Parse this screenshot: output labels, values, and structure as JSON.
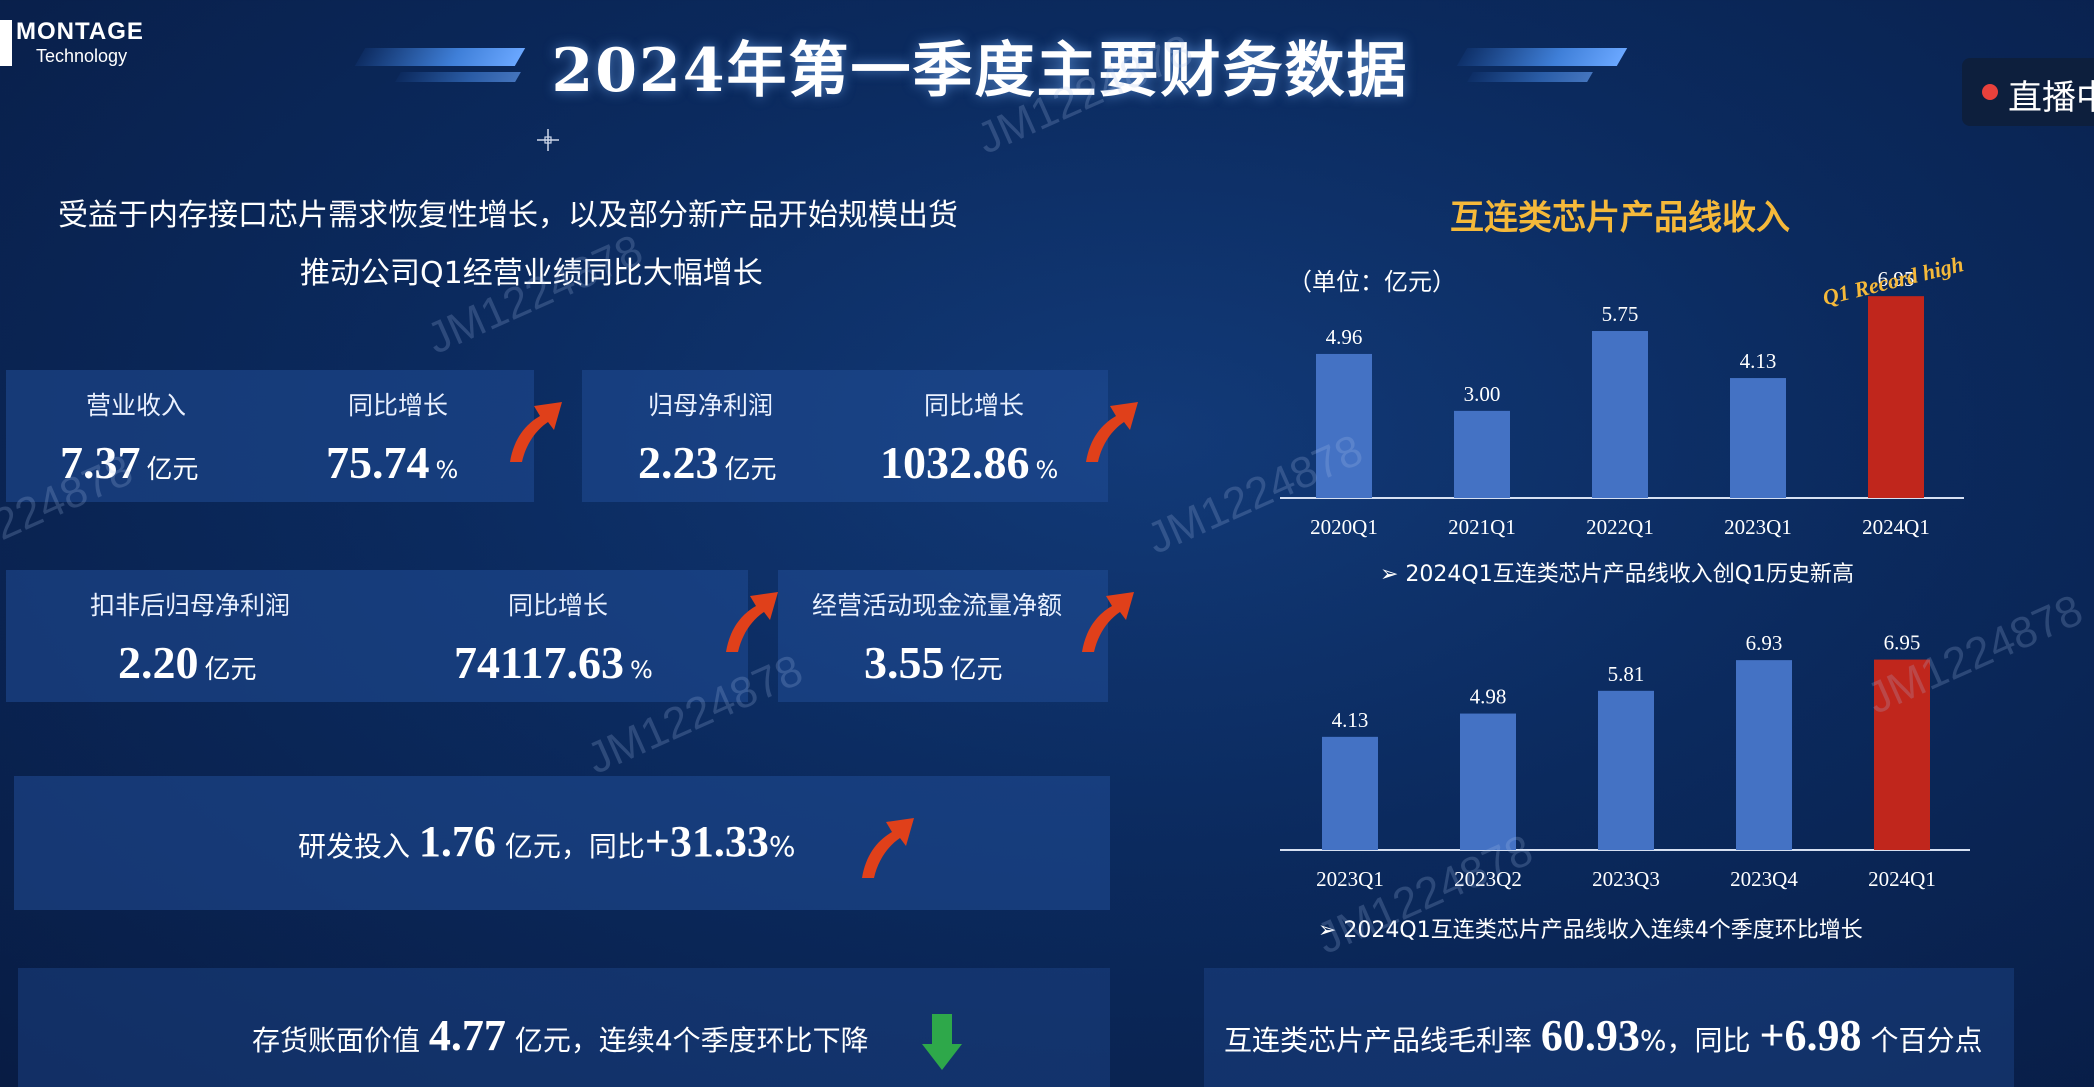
{
  "header": {
    "logo_main": "MONTAGE",
    "logo_sub": "Technology",
    "title": "2024年第一季度主要财务数据",
    "live_label": "直播中"
  },
  "intro": {
    "line1": "受益于内存接口芯片需求恢复性增长，以及部分新产品开始规模出货",
    "line2": "推动公司Q1经营业绩同比大幅增长"
  },
  "metrics": {
    "revenue": {
      "label": "营业收入",
      "value": "7.37",
      "unit": "亿元"
    },
    "revenue_growth": {
      "label": "同比增长",
      "value": "75.74",
      "unit": "%"
    },
    "net_profit": {
      "label": "归母净利润",
      "value": "2.23",
      "unit": "亿元"
    },
    "net_profit_growth": {
      "label": "同比增长",
      "value": "1032.86",
      "unit": "%"
    },
    "adj_net_profit": {
      "label": "扣非后归母净利润",
      "value": "2.20",
      "unit": "亿元"
    },
    "adj_net_profit_growth": {
      "label": "同比增长",
      "value": "74117.63",
      "unit": "%"
    },
    "op_cash_flow": {
      "label": "经营活动现金流量净额",
      "value": "3.55",
      "unit": "亿元"
    }
  },
  "rnd": {
    "prefix": "研发投入",
    "value": "1.76",
    "unit": "亿元，同比",
    "growth": "+31.33",
    "pct": "%"
  },
  "inventory": {
    "prefix": "存货账面价值",
    "value": "4.77",
    "suffix": "亿元，连续4个季度环比下降"
  },
  "margin": {
    "prefix": "互连类芯片产品线毛利率",
    "value": "60.93",
    "pct": "%",
    "mid": "，同比",
    "change": "+6.98",
    "suffix": "个百分点"
  },
  "chart_section": {
    "title": "互连类芯片产品线收入",
    "unit_note": "（单位：亿元）",
    "record_label": "Q1 Record high",
    "note1": "➢ 2024Q1互连类芯片产品线收入创Q1历史新高",
    "note2": "➢ 2024Q1互连类芯片产品线收入连续4个季度环比增长"
  },
  "chart_data": [
    {
      "type": "bar",
      "categories": [
        "2020Q1",
        "2021Q1",
        "2022Q1",
        "2023Q1",
        "2024Q1"
      ],
      "values": [
        4.96,
        3.0,
        5.75,
        4.13,
        6.95
      ],
      "labels": [
        "4.96",
        "3.00",
        "5.75",
        "4.13",
        "6.95"
      ],
      "highlight_index": 4,
      "ylim": [
        0,
        7.3
      ]
    },
    {
      "type": "bar",
      "categories": [
        "2023Q1",
        "2023Q2",
        "2023Q3",
        "2023Q4",
        "2024Q1"
      ],
      "values": [
        4.13,
        4.98,
        5.81,
        6.93,
        6.95
      ],
      "labels": [
        "4.13",
        "4.98",
        "5.81",
        "6.93",
        "6.95"
      ],
      "highlight_index": 4,
      "ylim": [
        0,
        7.3
      ]
    }
  ],
  "colors": {
    "bar": "#4472c4",
    "highlight_bar": "#c0261c",
    "chart_title": "#f5b93a",
    "up_arrow": "#e0401a",
    "down_arrow": "#2ea84a"
  },
  "icons": {
    "up_arrow": "curved-up-arrow-icon",
    "down_arrow": "down-arrow-icon",
    "live_dot": "record-dot-icon"
  },
  "watermark": "JM1224878"
}
